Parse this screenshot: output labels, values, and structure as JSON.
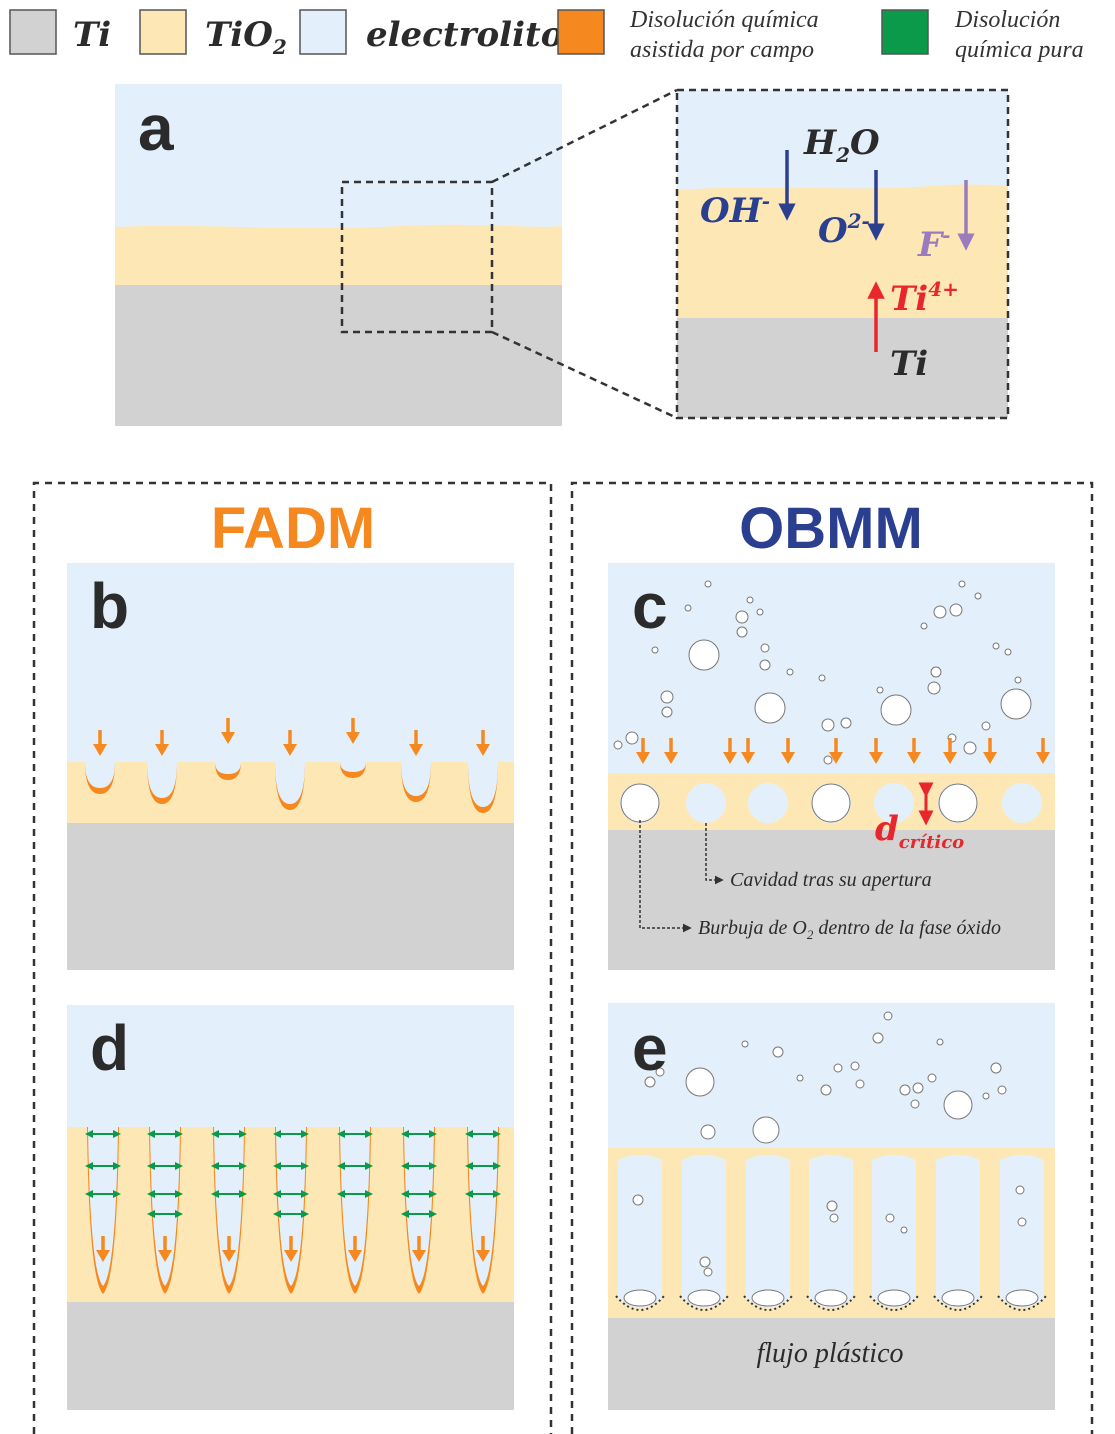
{
  "legend": {
    "ti_label": "Ti",
    "tio2_base": "TiO",
    "tio2_sub": "2",
    "electrolyte_label": "electrolito",
    "field_assisted_line1": "Disolución química",
    "field_assisted_line2": "asistida por campo",
    "pure_chemical_line1": "Disolución",
    "pure_chemical_line2": "química pura"
  },
  "colors": {
    "ti": "#d2d2d2",
    "tio2": "#fde7b5",
    "electrolyte": "#e3f0fc",
    "field_assisted": "#f5891f",
    "pure_chemical": "#0a9a4a",
    "navy": "#2b3f90",
    "red": "#e8262c",
    "violet": "#9a7cbd",
    "label_dark": "#2b2b2b"
  },
  "panel_a": {
    "letter": "a",
    "h2o_base": "H",
    "h2o_sub": "2",
    "h2o_tail": "O",
    "oh_base": "OH",
    "oh_sup": "-",
    "o2_base": "O",
    "o2_sup": "2-",
    "f_base": "F",
    "f_sup": "-",
    "ti4_base": "Ti",
    "ti4_sup": "4+",
    "ti_label": "Ti"
  },
  "mechanisms": {
    "fadm_title": "FADM",
    "obmm_title": "OBMM"
  },
  "panel_b": {
    "letter": "b"
  },
  "panel_c": {
    "letter": "c",
    "d_critical_base": "d",
    "d_critical_sub": "crítico",
    "cavity_label": "Cavidad tras su apertura",
    "bubble_label_pre": "Burbuja de O",
    "bubble_label_sub": "2",
    "bubble_label_post": " dentro de la fase óxido"
  },
  "panel_d": {
    "letter": "d"
  },
  "panel_e": {
    "letter": "e",
    "plastic_flow_label": "flujo plástico"
  }
}
